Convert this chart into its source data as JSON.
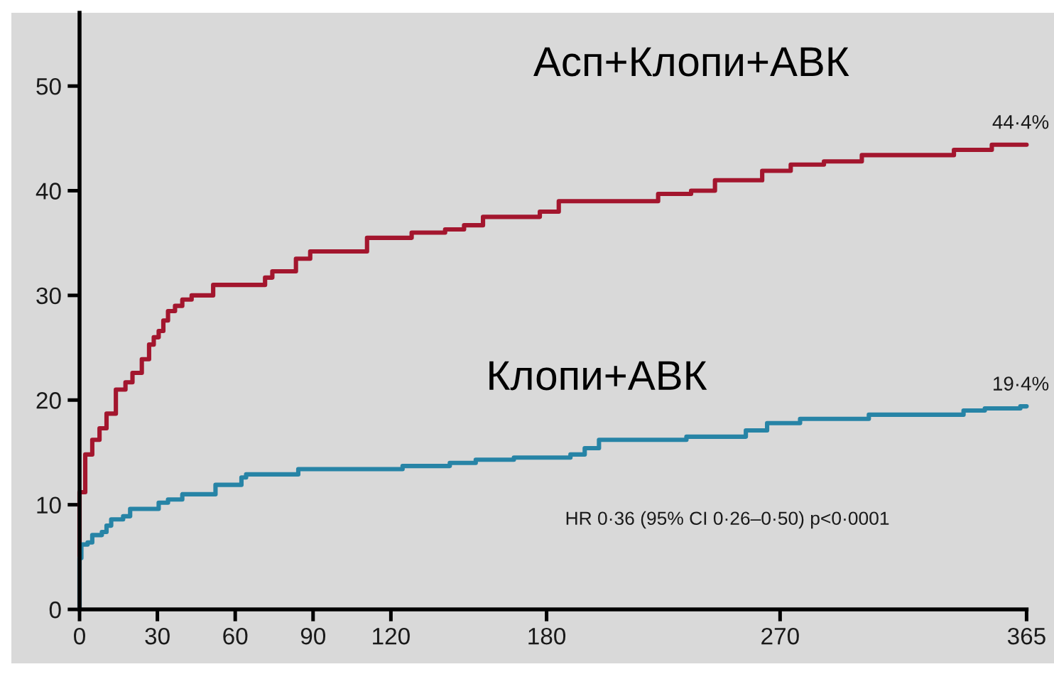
{
  "chart_data": {
    "type": "step",
    "annotations": [
      "HR 0·36 (95% CI 0·26–0·50) p<0·0001"
    ],
    "xlim": [
      0,
      365
    ],
    "ylim": [
      0,
      57
    ],
    "xticks": [
      0,
      30,
      60,
      90,
      120,
      180,
      270,
      365
    ],
    "yticks": [
      0,
      10,
      20,
      30,
      40,
      50
    ],
    "series": [
      {
        "name": "Асп+Клопи+АВК",
        "color": "#a3162e",
        "x": [
          0,
          0,
          2.2,
          4.9,
          7.7,
          10.4,
          14,
          17.7,
          20.4,
          24,
          26.8,
          28.6,
          30.5,
          32.3,
          34.1,
          36.8,
          39.6,
          43.2,
          51.5,
          71.5,
          74.3,
          83.4,
          88.9,
          110.8,
          128,
          140.9,
          148.2,
          155.5,
          177.4,
          184.7,
          223,
          235.7,
          244.9,
          263.1,
          274.1,
          286.9,
          301.5,
          337,
          351.6,
          365
        ],
        "values": [
          0,
          11.2,
          14.8,
          16.2,
          17.3,
          18.7,
          21.0,
          21.7,
          22.6,
          23.9,
          25.3,
          26.0,
          26.6,
          27.6,
          28.5,
          29.0,
          29.6,
          30.0,
          31.0,
          31.7,
          32.3,
          33.5,
          34.2,
          35.5,
          36.0,
          36.3,
          36.7,
          37.5,
          38.0,
          39.0,
          39.7,
          40.0,
          41.0,
          41.9,
          42.5,
          42.8,
          43.4,
          43.9,
          44.4,
          44.4
        ],
        "value_labels": [
          null,
          null,
          null,
          null,
          null,
          null,
          null,
          null,
          null,
          null,
          null,
          null,
          null,
          null,
          null,
          null,
          null,
          null,
          null,
          null,
          null,
          null,
          null,
          null,
          null,
          null,
          null,
          null,
          null,
          null,
          null,
          null,
          null,
          null,
          null,
          null,
          null,
          null,
          null,
          "44·4%"
        ]
      },
      {
        "name": "Клопи+АВК",
        "color": "#2784a6",
        "x": [
          0,
          0,
          0.7,
          3.1,
          4.9,
          8.6,
          10.4,
          12.2,
          16.8,
          19.5,
          30.5,
          34.1,
          39.6,
          52.4,
          62.4,
          64.2,
          84.3,
          124.5,
          142.7,
          152.7,
          167.4,
          189.2,
          194.7,
          200.2,
          233.9,
          256.8,
          265,
          277.7,
          304.2,
          340.7,
          348.9,
          362.6,
          365
        ],
        "values": [
          0,
          4.9,
          6.2,
          6.4,
          7.1,
          7.4,
          8.0,
          8.6,
          8.9,
          9.6,
          10.2,
          10.5,
          11.0,
          11.9,
          12.6,
          12.9,
          13.4,
          13.7,
          14.0,
          14.3,
          14.5,
          14.8,
          15.4,
          16.2,
          16.5,
          17.1,
          17.8,
          18.2,
          18.6,
          19.0,
          19.2,
          19.4,
          19.4
        ],
        "value_labels": [
          null,
          null,
          null,
          null,
          null,
          null,
          null,
          null,
          null,
          null,
          null,
          null,
          null,
          null,
          null,
          null,
          null,
          null,
          null,
          null,
          null,
          null,
          null,
          null,
          null,
          null,
          null,
          null,
          null,
          null,
          null,
          null,
          "19·4%"
        ]
      }
    ]
  }
}
